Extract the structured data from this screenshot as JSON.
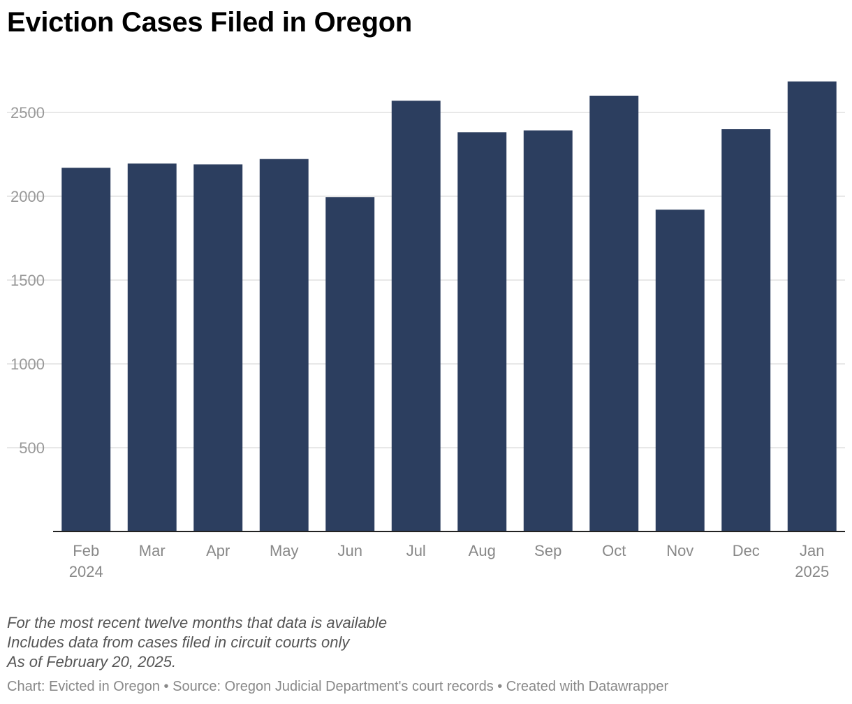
{
  "title": "Eviction Cases Filed in Oregon",
  "chart_data": {
    "type": "bar",
    "categories": [
      "Feb",
      "Mar",
      "Apr",
      "May",
      "Jun",
      "Jul",
      "Aug",
      "Sep",
      "Oct",
      "Nov",
      "Dec",
      "Jan"
    ],
    "category_sublabels": [
      "2024",
      "",
      "",
      "",
      "",
      "",
      "",
      "",
      "",
      "",
      "",
      "2025"
    ],
    "values": [
      2170,
      2195,
      2190,
      2222,
      1995,
      2570,
      2382,
      2393,
      2600,
      1920,
      2400,
      2685
    ],
    "yticks": [
      500,
      1000,
      1500,
      2000,
      2500
    ],
    "ylim": [
      0,
      2750
    ],
    "grid": true,
    "bar_color": "#2c3e5f"
  },
  "notes": [
    "For the most recent twelve months that data is available",
    "Includes data from cases filed in circuit courts only",
    "As of February 20, 2025."
  ],
  "footer": "Chart: Evicted in Oregon • Source: Oregon Judicial Department's court records • Created with Datawrapper"
}
